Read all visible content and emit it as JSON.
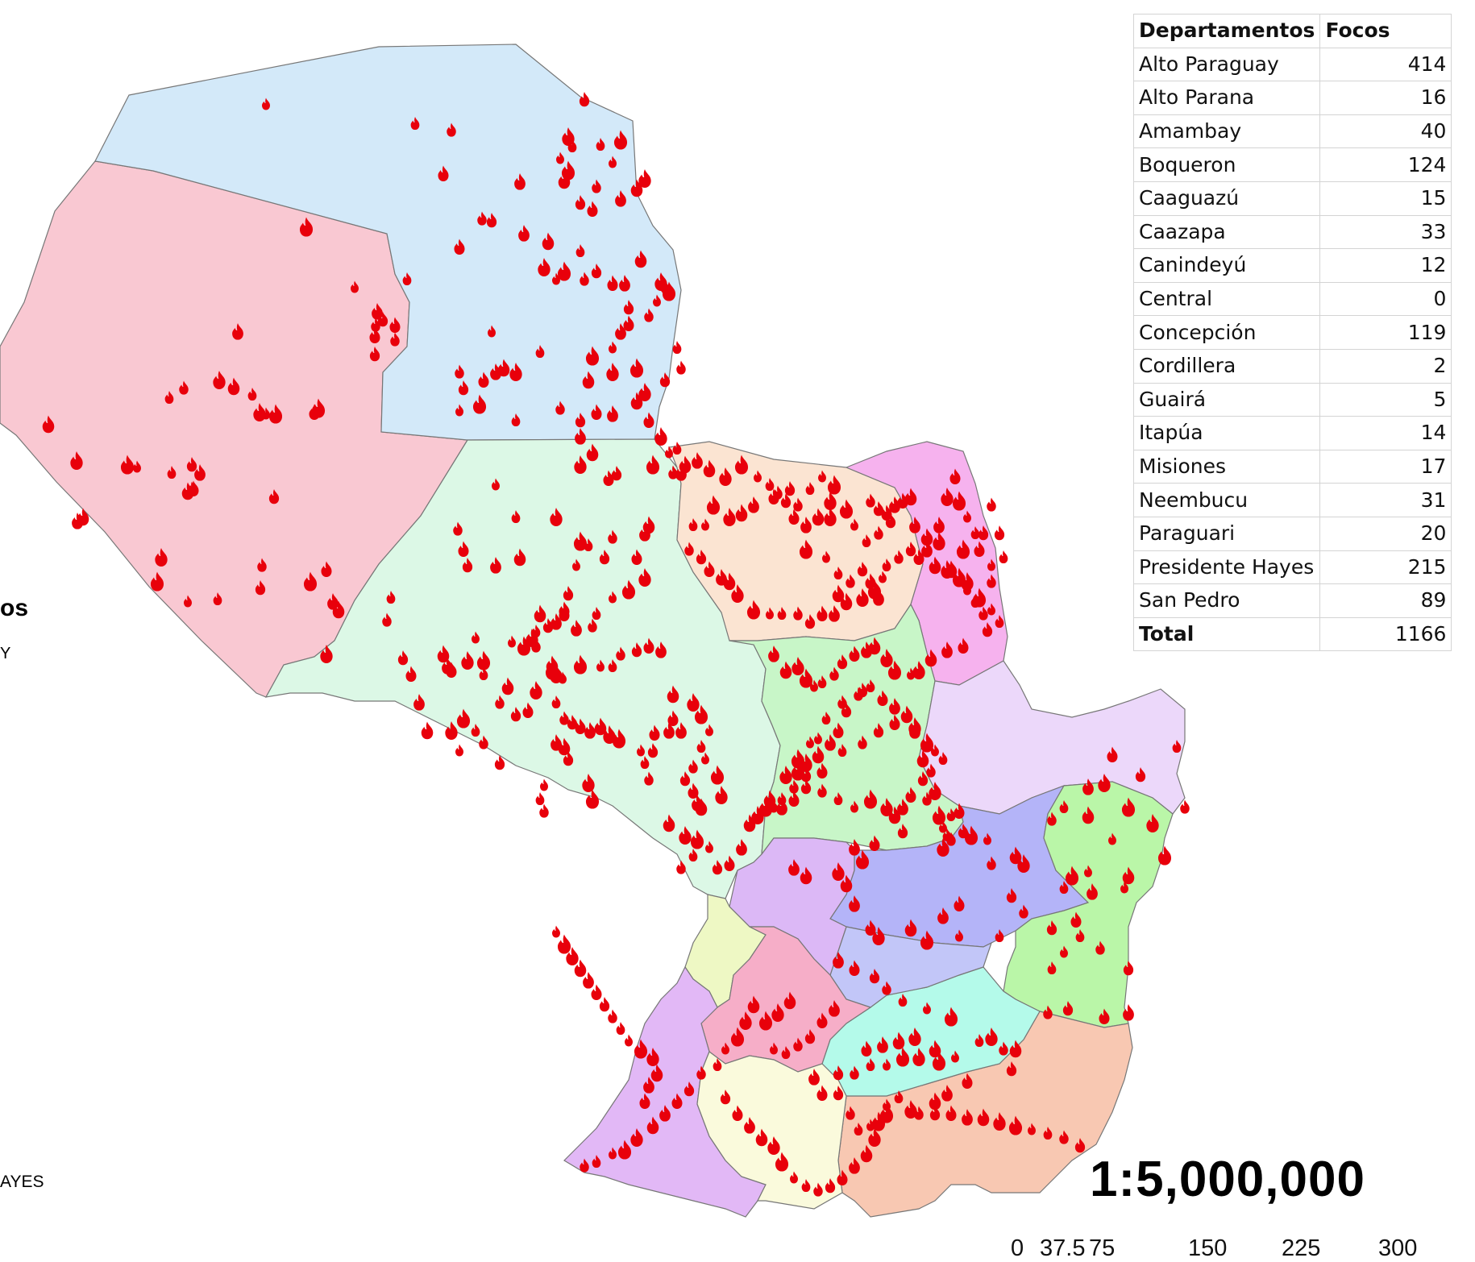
{
  "table": {
    "headers": [
      "Departamentos",
      "Focos"
    ],
    "rows": [
      {
        "name": "Alto Paraguay",
        "value": "414"
      },
      {
        "name": "Alto Parana",
        "value": "16"
      },
      {
        "name": "Amambay",
        "value": "40"
      },
      {
        "name": "Boqueron",
        "value": "124"
      },
      {
        "name": "Caaguazú",
        "value": "15"
      },
      {
        "name": "Caazapa",
        "value": "33"
      },
      {
        "name": "Canindeyú",
        "value": "12"
      },
      {
        "name": "Central",
        "value": "0"
      },
      {
        "name": "Concepción",
        "value": "119"
      },
      {
        "name": "Cordillera",
        "value": "2"
      },
      {
        "name": "Guairá",
        "value": "5"
      },
      {
        "name": "Itapúa",
        "value": "14"
      },
      {
        "name": "Misiones",
        "value": "17"
      },
      {
        "name": "Neembucu",
        "value": "31"
      },
      {
        "name": "Paraguari",
        "value": "20"
      },
      {
        "name": "Presidente Hayes",
        "value": "215"
      },
      {
        "name": "San Pedro",
        "value": "89"
      }
    ],
    "total": {
      "name": "Total",
      "value": "1166"
    }
  },
  "scale": {
    "ratio": "1:5,000,000",
    "ticks": [
      "0",
      "37.5",
      "75",
      "150",
      "225",
      "300"
    ]
  },
  "legend_fragments": {
    "title_tail": "os",
    "item_tail": "Y",
    "hayes_tail": "AYES"
  },
  "colors": {
    "fire": "#e8000b",
    "alto_paraguay": "#d3e9f9",
    "boqueron": "#f9c8d2",
    "presidente_hayes": "#dcf8e6",
    "concepcion": "#fbe4d2",
    "amambay": "#f6b2ee",
    "san_pedro": "#c8f6c8",
    "canindeyu": "#ecd8fa",
    "caaguazu": "#b4b4f8",
    "alto_parana": "#baf6a8",
    "itapua": "#f8c8b2",
    "caazapa": "#b4faea",
    "guaira": "#c2c6f8",
    "cordillera": "#dcb8f6",
    "central": "#eef8c4",
    "paraguari": "#f6aec8",
    "neembucu": "#e2b8f6",
    "misiones": "#fafadc"
  },
  "fire_icon": "fire-icon"
}
